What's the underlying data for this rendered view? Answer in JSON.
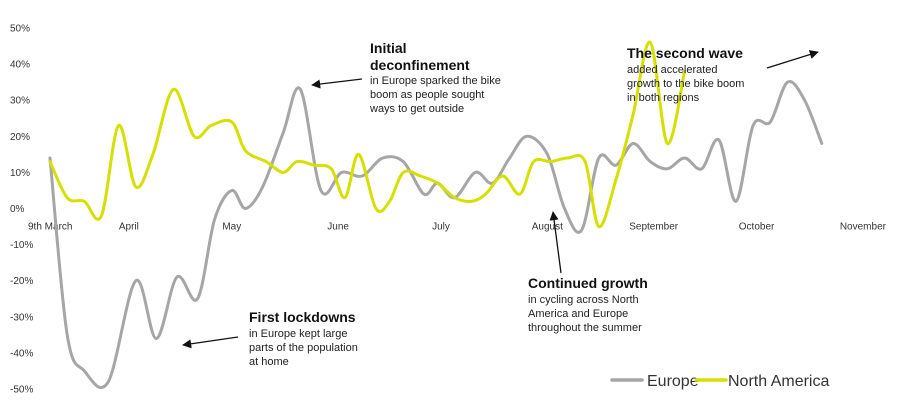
{
  "chart_data": {
    "type": "line",
    "ylim": [
      -50,
      50
    ],
    "y_ticks": [
      {
        "value": 50,
        "label": "50%"
      },
      {
        "value": 40,
        "label": "40%"
      },
      {
        "value": 30,
        "label": "30%"
      },
      {
        "value": 20,
        "label": "20%"
      },
      {
        "value": 10,
        "label": "10%"
      },
      {
        "value": 0,
        "label": "0%"
      },
      {
        "value": -10,
        "label": "-10%"
      },
      {
        "value": -20,
        "label": "-20%"
      },
      {
        "value": -30,
        "label": "-30%"
      },
      {
        "value": -40,
        "label": "-40%"
      },
      {
        "value": -50,
        "label": "-50%"
      }
    ],
    "x_ticks": [
      {
        "day": 0,
        "label": "9th March"
      },
      {
        "day": 23,
        "label": "April"
      },
      {
        "day": 53,
        "label": "May"
      },
      {
        "day": 84,
        "label": "June"
      },
      {
        "day": 114,
        "label": "July"
      },
      {
        "day": 145,
        "label": "August"
      },
      {
        "day": 176,
        "label": "September"
      },
      {
        "day": 206,
        "label": "October"
      },
      {
        "day": 237,
        "label": "November"
      }
    ],
    "series": [
      {
        "name": "Europe",
        "color": "#a6a6a6",
        "points": [
          [
            0,
            14
          ],
          [
            5,
            -35
          ],
          [
            10,
            -45
          ],
          [
            17,
            -48
          ],
          [
            25,
            -20
          ],
          [
            31,
            -36
          ],
          [
            37,
            -19
          ],
          [
            43,
            -25
          ],
          [
            48,
            -3
          ],
          [
            53,
            5
          ],
          [
            57,
            0
          ],
          [
            62,
            6
          ],
          [
            68,
            21
          ],
          [
            73,
            33
          ],
          [
            79,
            5
          ],
          [
            85,
            10
          ],
          [
            91,
            9
          ],
          [
            97,
            14
          ],
          [
            103,
            13
          ],
          [
            109,
            4
          ],
          [
            113,
            7
          ],
          [
            118,
            3
          ],
          [
            124,
            10
          ],
          [
            129,
            7
          ],
          [
            134,
            14
          ],
          [
            139,
            20
          ],
          [
            145,
            15
          ],
          [
            150,
            0
          ],
          [
            155,
            -6
          ],
          [
            160,
            14
          ],
          [
            165,
            12
          ],
          [
            170,
            18
          ],
          [
            175,
            13
          ],
          [
            180,
            11
          ],
          [
            185,
            14
          ],
          [
            190,
            11
          ],
          [
            195,
            19
          ],
          [
            200,
            2
          ],
          [
            205,
            23
          ],
          [
            210,
            24
          ],
          [
            215,
            35
          ],
          [
            220,
            30
          ],
          [
            225,
            18
          ]
        ]
      },
      {
        "name": "North America",
        "color": "#d6e000",
        "points": [
          [
            0,
            13
          ],
          [
            5,
            3
          ],
          [
            10,
            2
          ],
          [
            15,
            -2
          ],
          [
            20,
            23
          ],
          [
            25,
            6
          ],
          [
            30,
            15
          ],
          [
            36,
            33
          ],
          [
            42,
            20
          ],
          [
            47,
            23
          ],
          [
            53,
            24
          ],
          [
            57,
            16
          ],
          [
            63,
            13
          ],
          [
            68,
            10
          ],
          [
            72,
            13
          ],
          [
            77,
            12
          ],
          [
            82,
            11
          ],
          [
            86,
            3
          ],
          [
            90,
            15
          ],
          [
            95,
            0
          ],
          [
            99,
            2
          ],
          [
            103,
            10
          ],
          [
            108,
            9
          ],
          [
            113,
            7
          ],
          [
            118,
            3
          ],
          [
            123,
            2
          ],
          [
            127,
            4
          ],
          [
            132,
            9
          ],
          [
            137,
            4
          ],
          [
            141,
            13
          ],
          [
            146,
            13
          ],
          [
            151,
            14
          ],
          [
            156,
            13
          ],
          [
            160,
            -5
          ],
          [
            165,
            8
          ],
          [
            170,
            26
          ],
          [
            175,
            46
          ],
          [
            180,
            18
          ],
          [
            185,
            38
          ]
        ]
      }
    ],
    "legend": {
      "position": "bottom-right",
      "items": [
        "Europe",
        "North America"
      ]
    },
    "annotations": [
      {
        "title": [
          "Initial",
          "deconfinement"
        ],
        "body": [
          "in Europe sparked  the bike",
          "boom as people sought",
          "ways to get outside"
        ]
      },
      {
        "title": [
          "The second wave"
        ],
        "body": [
          "added accelerated",
          "growth to the bike boom",
          "in both regions"
        ]
      },
      {
        "title": [
          "Continued growth"
        ],
        "body": [
          "in cycling across North",
          "America and Europe",
          "throughout the summer"
        ]
      },
      {
        "title": [
          "First lockdowns"
        ],
        "body": [
          "in Europe kept large",
          "parts of the population",
          "at home"
        ]
      }
    ]
  }
}
